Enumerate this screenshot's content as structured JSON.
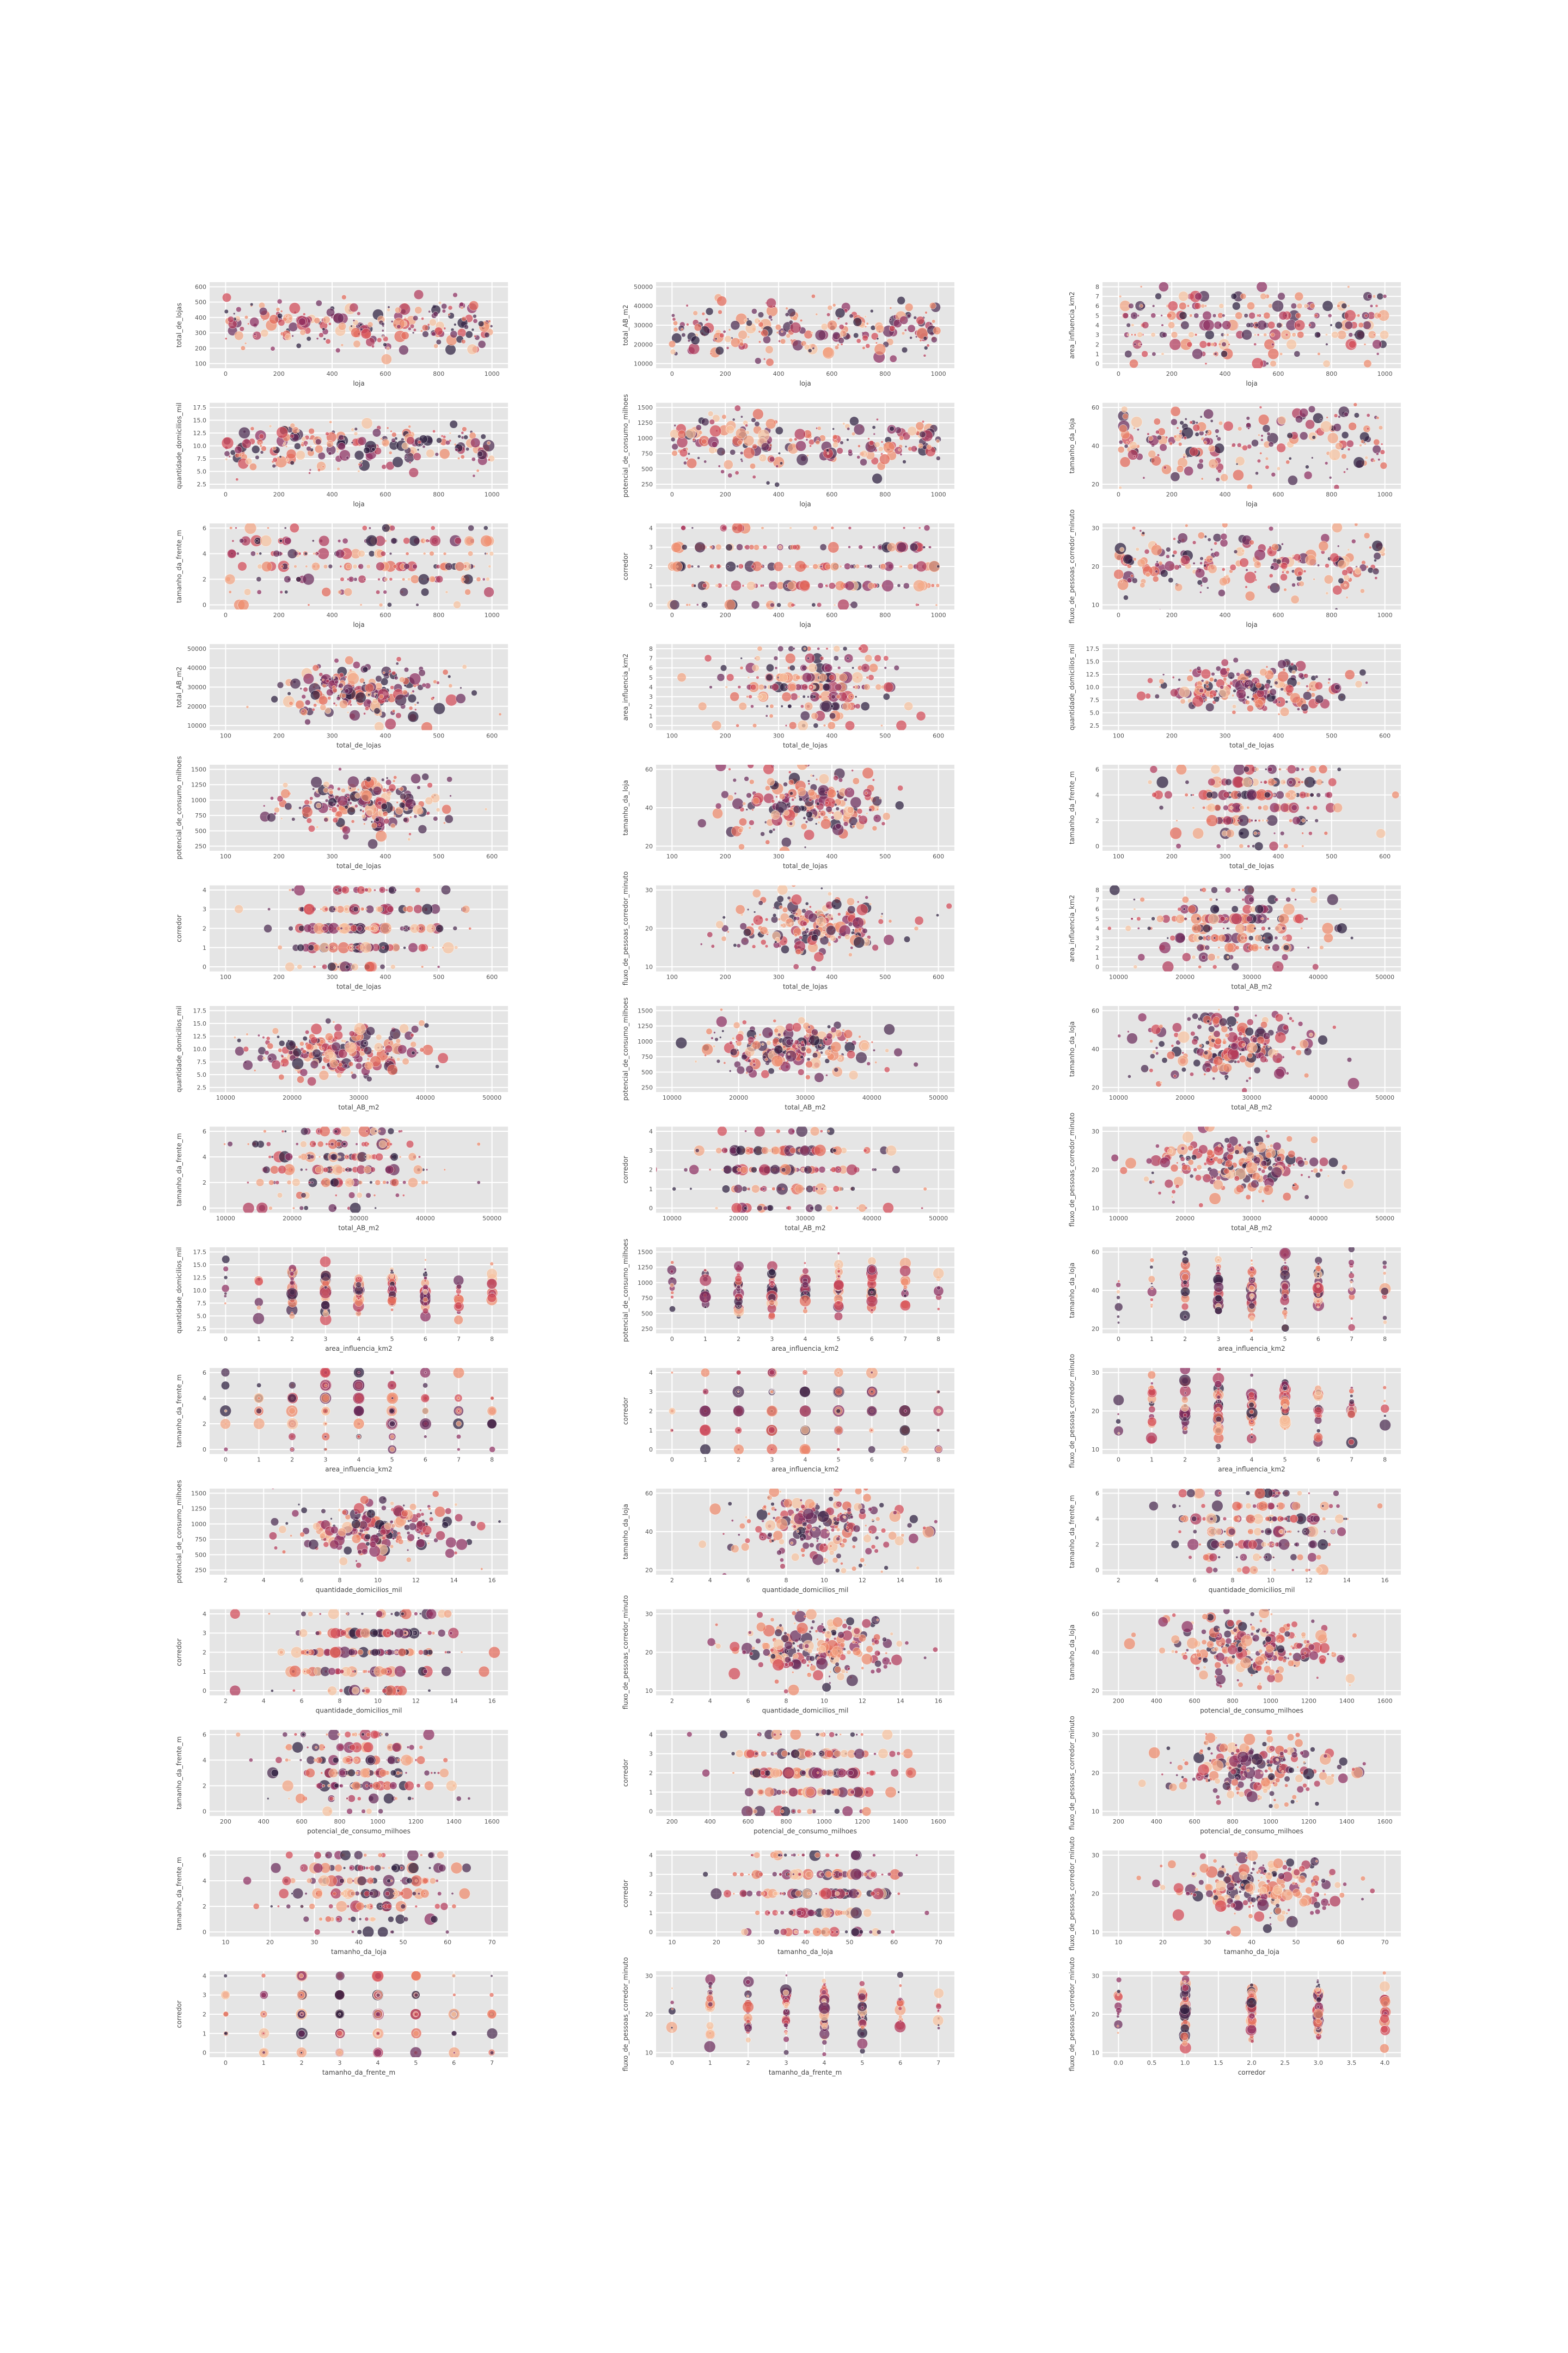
{
  "figure": {
    "palette": [
      "#2d1e3e",
      "#4a2a4f",
      "#6b2d5c",
      "#8e2f61",
      "#b13a5c",
      "#d24b57",
      "#e36a5a",
      "#ee8a6c",
      "#f3a583",
      "#f6c2a0"
    ]
  },
  "variables": {
    "loja": {
      "min": 0,
      "max": 1000,
      "ticks": [
        0,
        200,
        400,
        600,
        800,
        1000
      ]
    },
    "total_de_lojas": {
      "min": 100,
      "max": 600,
      "ticks": [
        100,
        200,
        300,
        400,
        500,
        600
      ]
    },
    "total_AB_m2": {
      "min": 10000,
      "max": 50000,
      "ticks": [
        10000,
        20000,
        30000,
        40000,
        50000
      ]
    },
    "area_influencia_km2": {
      "min": 0,
      "max": 8,
      "ticks": [
        0,
        1,
        2,
        3,
        4,
        5,
        6,
        7,
        8
      ]
    },
    "quantidade_domicilios_mil": {
      "min": 2.5,
      "max": 17.5,
      "ticks": [
        2,
        4,
        6,
        8,
        10,
        12,
        14,
        16
      ],
      "yticks": [
        2.5,
        5.0,
        7.5,
        10.0,
        12.5,
        15.0,
        17.5
      ]
    },
    "potencial_de_consumo_milhoes": {
      "min": 250,
      "max": 1500,
      "ticks": [
        200,
        400,
        600,
        800,
        1000,
        1200,
        1400,
        1600
      ],
      "yticks": [
        250,
        500,
        750,
        1000,
        1250,
        1500
      ]
    },
    "tamanho_da_loja": {
      "min": 20,
      "max": 60,
      "ticks": [
        10,
        20,
        30,
        40,
        50,
        60,
        70
      ],
      "yticks": [
        20,
        40,
        60
      ]
    },
    "tamanho_da_frente_m": {
      "min": 0,
      "max": 7,
      "ticks": [
        0,
        1,
        2,
        3,
        4,
        5,
        6,
        7
      ],
      "yticks": [
        0,
        2,
        4,
        6
      ]
    },
    "corredor": {
      "min": 0,
      "max": 4,
      "ticks": [
        0,
        1,
        2,
        3,
        4
      ],
      "yticks": [
        0,
        1,
        2,
        3,
        4
      ],
      "xticks_float": [
        0.0,
        0.5,
        1.0,
        1.5,
        2.0,
        2.5,
        3.0,
        3.5,
        4.0
      ]
    },
    "fluxo_de_pessoas_corredor_minuto": {
      "min": 10,
      "max": 30,
      "ticks": [
        10,
        20,
        30
      ]
    }
  },
  "chart_data": [
    {
      "type": "scatter",
      "xlabel": "loja",
      "ylabel": "total_de_lojas"
    },
    {
      "type": "scatter",
      "xlabel": "loja",
      "ylabel": "total_AB_m2"
    },
    {
      "type": "scatter",
      "xlabel": "loja",
      "ylabel": "area_influencia_km2"
    },
    {
      "type": "scatter",
      "xlabel": "loja",
      "ylabel": "quantidade_domicilios_mil"
    },
    {
      "type": "scatter",
      "xlabel": "loja",
      "ylabel": "potencial_de_consumo_milhoes"
    },
    {
      "type": "scatter",
      "xlabel": "loja",
      "ylabel": "tamanho_da_loja"
    },
    {
      "type": "scatter",
      "xlabel": "loja",
      "ylabel": "tamanho_da_frente_m"
    },
    {
      "type": "scatter",
      "xlabel": "loja",
      "ylabel": "corredor"
    },
    {
      "type": "scatter",
      "xlabel": "loja",
      "ylabel": "fluxo_de_pessoas_corredor_minuto"
    },
    {
      "type": "scatter",
      "xlabel": "total_de_lojas",
      "ylabel": "total_AB_m2"
    },
    {
      "type": "scatter",
      "xlabel": "total_de_lojas",
      "ylabel": "area_influencia_km2"
    },
    {
      "type": "scatter",
      "xlabel": "total_de_lojas",
      "ylabel": "quantidade_domicilios_mil"
    },
    {
      "type": "scatter",
      "xlabel": "total_de_lojas",
      "ylabel": "potencial_de_consumo_milhoes"
    },
    {
      "type": "scatter",
      "xlabel": "total_de_lojas",
      "ylabel": "tamanho_da_loja"
    },
    {
      "type": "scatter",
      "xlabel": "total_de_lojas",
      "ylabel": "tamanho_da_frente_m"
    },
    {
      "type": "scatter",
      "xlabel": "total_de_lojas",
      "ylabel": "corredor"
    },
    {
      "type": "scatter",
      "xlabel": "total_de_lojas",
      "ylabel": "fluxo_de_pessoas_corredor_minuto"
    },
    {
      "type": "scatter",
      "xlabel": "total_AB_m2",
      "ylabel": "area_influencia_km2"
    },
    {
      "type": "scatter",
      "xlabel": "total_AB_m2",
      "ylabel": "quantidade_domicilios_mil"
    },
    {
      "type": "scatter",
      "xlabel": "total_AB_m2",
      "ylabel": "potencial_de_consumo_milhoes"
    },
    {
      "type": "scatter",
      "xlabel": "total_AB_m2",
      "ylabel": "tamanho_da_loja"
    },
    {
      "type": "scatter",
      "xlabel": "total_AB_m2",
      "ylabel": "tamanho_da_frente_m"
    },
    {
      "type": "scatter",
      "xlabel": "total_AB_m2",
      "ylabel": "corredor"
    },
    {
      "type": "scatter",
      "xlabel": "total_AB_m2",
      "ylabel": "fluxo_de_pessoas_corredor_minuto"
    },
    {
      "type": "scatter",
      "xlabel": "area_influencia_km2",
      "ylabel": "quantidade_domicilios_mil"
    },
    {
      "type": "scatter",
      "xlabel": "area_influencia_km2",
      "ylabel": "potencial_de_consumo_milhoes"
    },
    {
      "type": "scatter",
      "xlabel": "area_influencia_km2",
      "ylabel": "tamanho_da_loja"
    },
    {
      "type": "scatter",
      "xlabel": "area_influencia_km2",
      "ylabel": "tamanho_da_frente_m"
    },
    {
      "type": "scatter",
      "xlabel": "area_influencia_km2",
      "ylabel": "corredor"
    },
    {
      "type": "scatter",
      "xlabel": "area_influencia_km2",
      "ylabel": "fluxo_de_pessoas_corredor_minuto"
    },
    {
      "type": "scatter",
      "xlabel": "quantidade_domicilios_mil",
      "ylabel": "potencial_de_consumo_milhoes"
    },
    {
      "type": "scatter",
      "xlabel": "quantidade_domicilios_mil",
      "ylabel": "tamanho_da_loja"
    },
    {
      "type": "scatter",
      "xlabel": "quantidade_domicilios_mil",
      "ylabel": "tamanho_da_frente_m"
    },
    {
      "type": "scatter",
      "xlabel": "quantidade_domicilios_mil",
      "ylabel": "corredor"
    },
    {
      "type": "scatter",
      "xlabel": "quantidade_domicilios_mil",
      "ylabel": "fluxo_de_pessoas_corredor_minuto"
    },
    {
      "type": "scatter",
      "xlabel": "potencial_de_consumo_milhoes",
      "ylabel": "tamanho_da_loja"
    },
    {
      "type": "scatter",
      "xlabel": "potencial_de_consumo_milhoes",
      "ylabel": "tamanho_da_frente_m"
    },
    {
      "type": "scatter",
      "xlabel": "potencial_de_consumo_milhoes",
      "ylabel": "corredor"
    },
    {
      "type": "scatter",
      "xlabel": "potencial_de_consumo_milhoes",
      "ylabel": "fluxo_de_pessoas_corredor_minuto"
    },
    {
      "type": "scatter",
      "xlabel": "tamanho_da_loja",
      "ylabel": "tamanho_da_frente_m"
    },
    {
      "type": "scatter",
      "xlabel": "tamanho_da_loja",
      "ylabel": "corredor"
    },
    {
      "type": "scatter",
      "xlabel": "tamanho_da_loja",
      "ylabel": "fluxo_de_pessoas_corredor_minuto"
    },
    {
      "type": "scatter",
      "xlabel": "tamanho_da_frente_m",
      "ylabel": "corredor"
    },
    {
      "type": "scatter",
      "xlabel": "tamanho_da_frente_m",
      "ylabel": "fluxo_de_pessoas_corredor_minuto"
    },
    {
      "type": "scatter",
      "xlabel": "corredor",
      "ylabel": "fluxo_de_pessoas_corredor_minuto"
    }
  ]
}
